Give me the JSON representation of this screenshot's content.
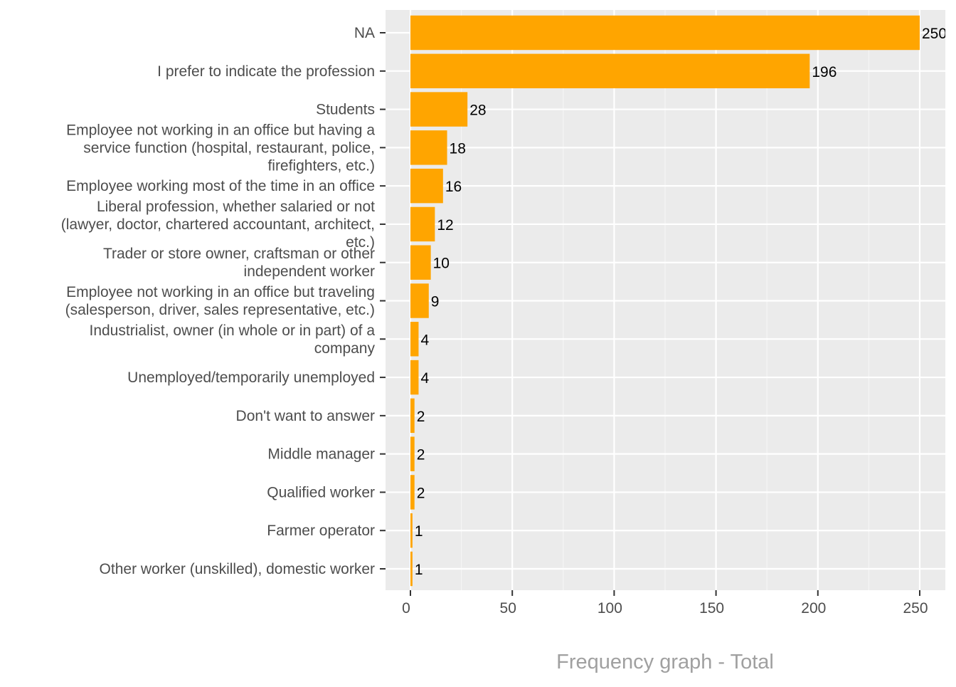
{
  "chart_data": {
    "type": "bar",
    "orientation": "horizontal",
    "title": "",
    "xlabel": "Frequency graph - Total",
    "ylabel": "",
    "xlim": [
      -12,
      262
    ],
    "x_ticks": [
      0,
      50,
      100,
      150,
      200,
      250
    ],
    "x_tick_labels": [
      "0",
      "50",
      "100",
      "150",
      "200",
      "250"
    ],
    "grid": true,
    "bar_color": "#FFA500",
    "panel_color": "#EBEBEB",
    "categories": [
      {
        "lines": [
          "NA"
        ],
        "value": 250
      },
      {
        "lines": [
          "I prefer to indicate the profession"
        ],
        "value": 196
      },
      {
        "lines": [
          "Students"
        ],
        "value": 28
      },
      {
        "lines": [
          "Employee not working in an office but having a",
          "service function (hospital, restaurant, police,",
          "firefighters, etc.)"
        ],
        "value": 18
      },
      {
        "lines": [
          "Employee working most of the time in an office"
        ],
        "value": 16
      },
      {
        "lines": [
          "Liberal profession, whether salaried or not",
          "(lawyer, doctor, chartered accountant, architect,",
          "etc.)"
        ],
        "value": 12
      },
      {
        "lines": [
          "Trader or store owner, craftsman or other",
          "independent worker"
        ],
        "value": 10
      },
      {
        "lines": [
          "Employee not working in an office but traveling",
          "(salesperson, driver, sales representative, etc.)"
        ],
        "value": 9
      },
      {
        "lines": [
          "Industrialist, owner (in whole or in part) of a",
          "company"
        ],
        "value": 4
      },
      {
        "lines": [
          "Unemployed/temporarily unemployed"
        ],
        "value": 4
      },
      {
        "lines": [
          "Don't want to answer"
        ],
        "value": 2
      },
      {
        "lines": [
          "Middle manager"
        ],
        "value": 2
      },
      {
        "lines": [
          "Qualified worker"
        ],
        "value": 2
      },
      {
        "lines": [
          "Farmer operator"
        ],
        "value": 1
      },
      {
        "lines": [
          "Other worker (unskilled), domestic worker"
        ],
        "value": 1
      }
    ],
    "data_labels": [
      "250",
      "196",
      "28",
      "18",
      "16",
      "12",
      "10",
      "9",
      "4",
      "4",
      "2",
      "2",
      "2",
      "1",
      "1"
    ]
  }
}
